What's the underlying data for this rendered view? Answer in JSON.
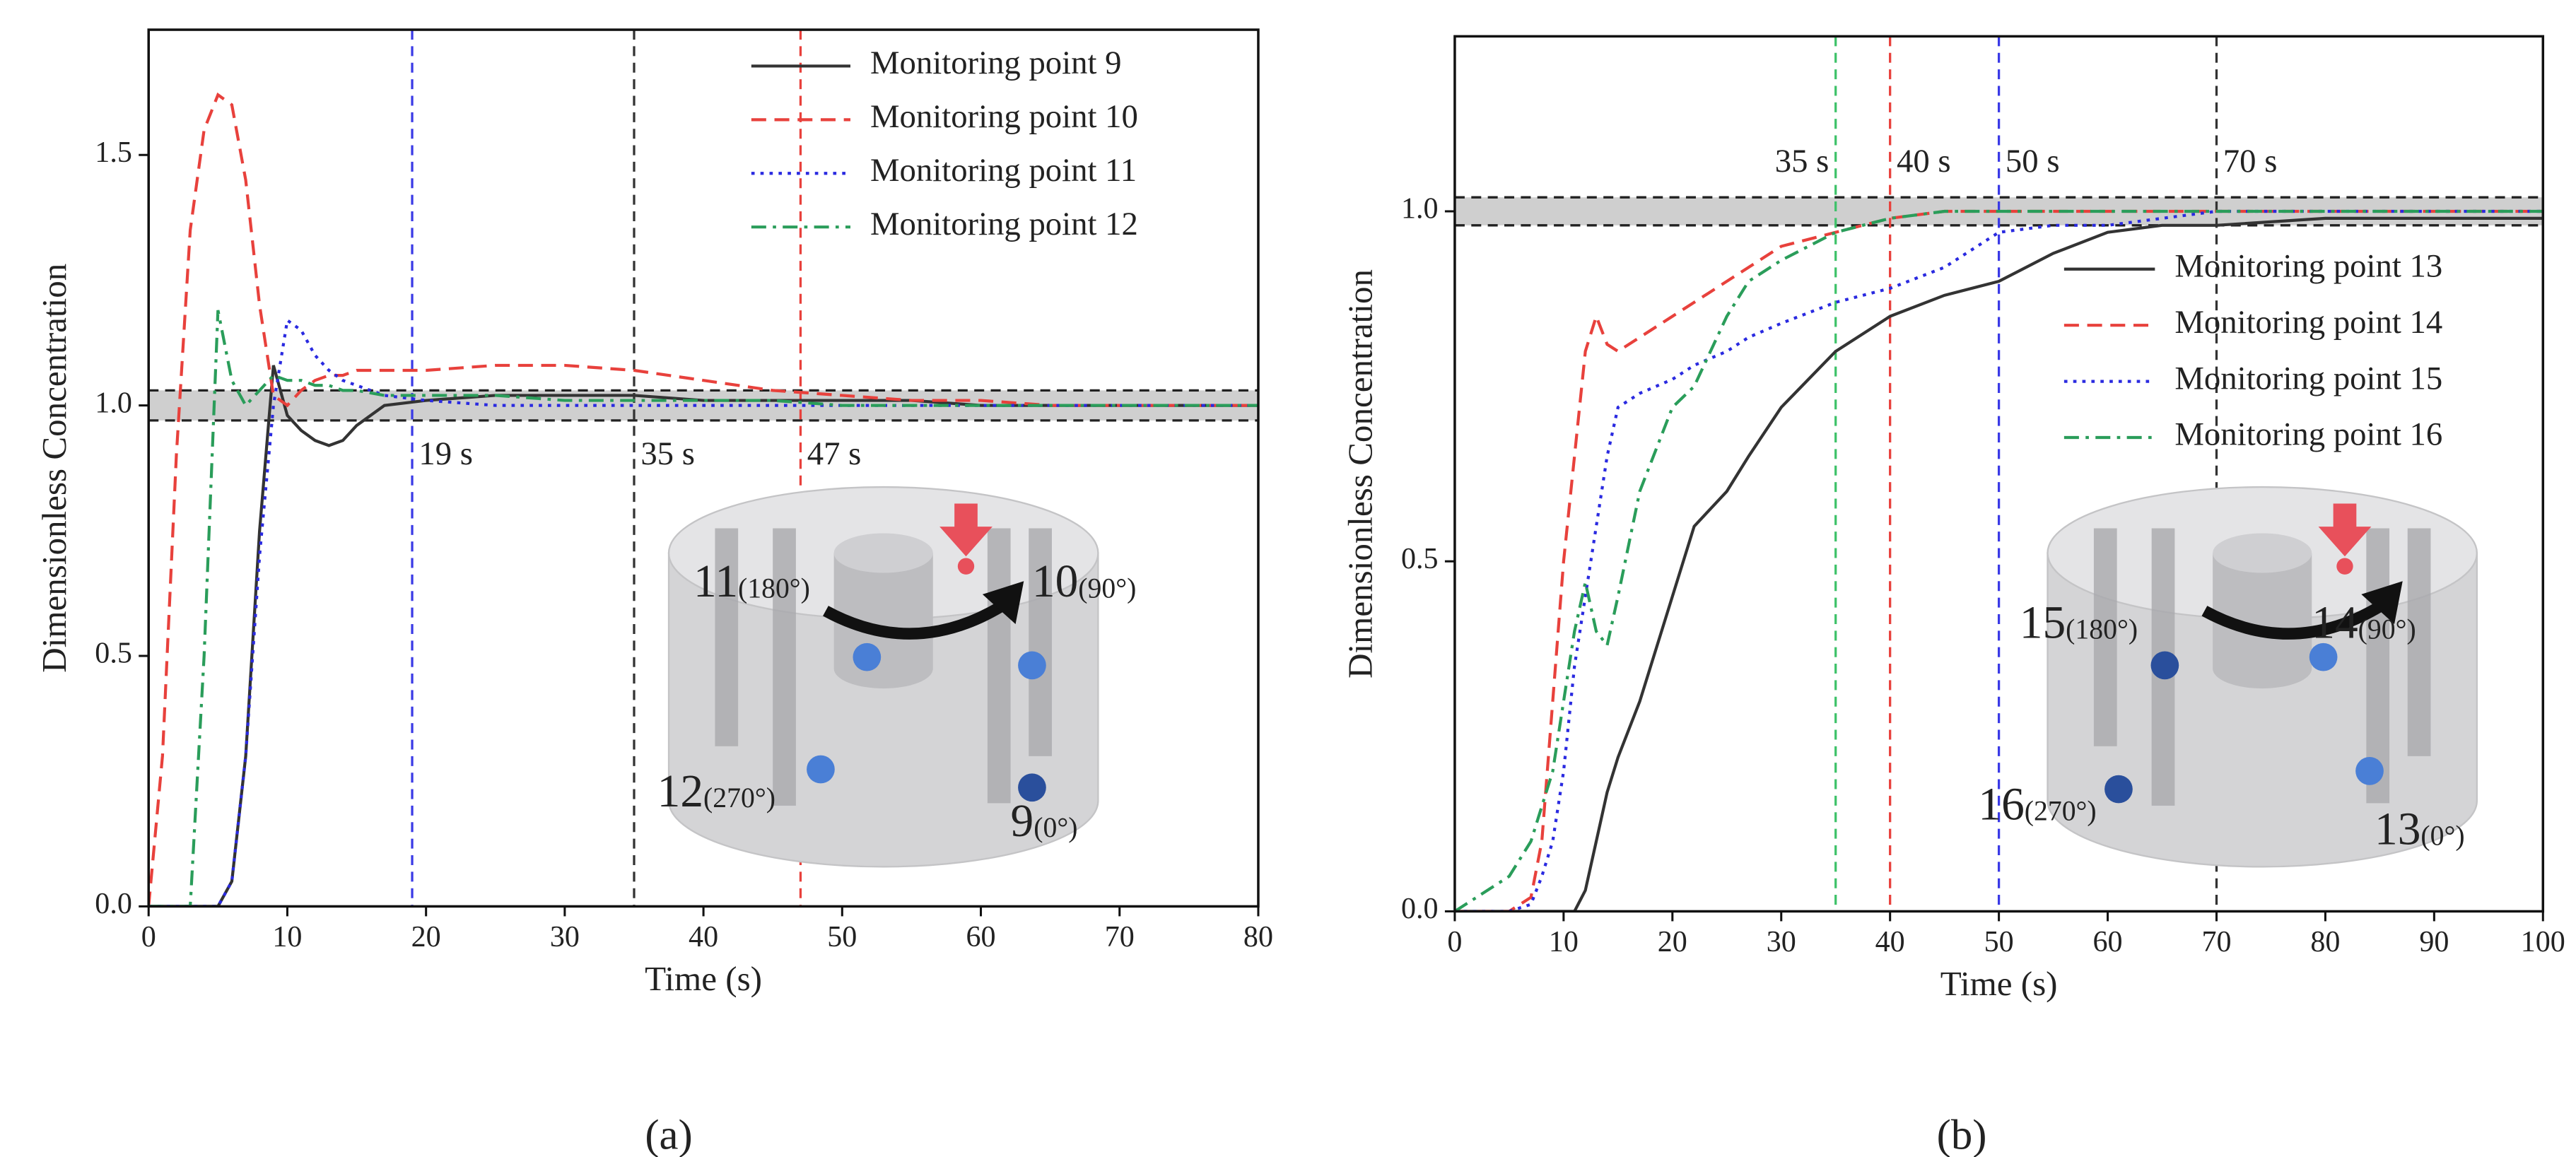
{
  "chart_data": [
    {
      "type": "line",
      "panel_label": "(a)",
      "xlabel": "Time (s)",
      "ylabel": "Dimensionless Concentration",
      "xlim": [
        0,
        80
      ],
      "ylim": [
        0,
        1.75
      ],
      "xticks": [
        0,
        10,
        20,
        30,
        40,
        50,
        60,
        70,
        80
      ],
      "yticks": [
        {
          "value": 0,
          "label": "0.0"
        },
        0.5,
        {
          "value": 1,
          "label": "1.0"
        },
        1.5
      ],
      "legend": "upper right",
      "band": [
        0.97,
        1.03
      ],
      "x": [
        0,
        1,
        2,
        3,
        4,
        5,
        6,
        7,
        8,
        9,
        10,
        11,
        12,
        13,
        14,
        15,
        17,
        20,
        25,
        30,
        35,
        40,
        45,
        50,
        55,
        60,
        65,
        70,
        75,
        80
      ],
      "series": [
        {
          "name": "Monitoring point 9",
          "color": "#333333",
          "style": "solid",
          "values": [
            0,
            0,
            0,
            0,
            0,
            0,
            0.05,
            0.3,
            0.75,
            1.08,
            0.98,
            0.95,
            0.93,
            0.92,
            0.93,
            0.96,
            1.0,
            1.01,
            1.02,
            1.02,
            1.02,
            1.01,
            1.01,
            1.01,
            1.01,
            1.0,
            1.0,
            1.0,
            1.0,
            1.0
          ]
        },
        {
          "name": "Monitoring point 10",
          "color": "#e8413c",
          "style": "dashed",
          "values": [
            0,
            0.3,
            0.9,
            1.35,
            1.55,
            1.62,
            1.6,
            1.45,
            1.2,
            1.02,
            1.0,
            1.03,
            1.05,
            1.06,
            1.06,
            1.07,
            1.07,
            1.07,
            1.08,
            1.08,
            1.07,
            1.05,
            1.03,
            1.02,
            1.01,
            1.01,
            1.0,
            1.0,
            1.0,
            1.0
          ]
        },
        {
          "name": "Monitoring point 11",
          "color": "#2a2ae0",
          "style": "dotted",
          "values": [
            0,
            0,
            0,
            0,
            0,
            0,
            0.05,
            0.3,
            0.7,
            1.0,
            1.17,
            1.15,
            1.1,
            1.07,
            1.05,
            1.04,
            1.02,
            1.01,
            1.0,
            1.0,
            1.0,
            1.0,
            1.0,
            1.0,
            1.0,
            1.0,
            1.0,
            1.0,
            1.0,
            1.0
          ]
        },
        {
          "name": "Monitoring point 12",
          "color": "#2a9d5a",
          "style": "dashdot",
          "values": [
            0,
            0,
            0,
            0,
            0.5,
            1.19,
            1.05,
            1.0,
            1.03,
            1.06,
            1.05,
            1.05,
            1.04,
            1.04,
            1.03,
            1.03,
            1.02,
            1.02,
            1.02,
            1.01,
            1.01,
            1.01,
            1.01,
            1.0,
            1.0,
            1.0,
            1.0,
            1.0,
            1.0,
            1.0
          ]
        }
      ],
      "vlines": [
        {
          "value": 19,
          "label": "19 s",
          "color": "#3a3ae6"
        },
        {
          "value": 35,
          "label": "35 s",
          "color": "#333333"
        },
        {
          "value": 47,
          "label": "47 s",
          "color": "#e8413c"
        }
      ],
      "inset_labels": [
        {
          "number": "11",
          "angle": "(180°)",
          "dot_color": "#4a7fd6"
        },
        {
          "number": "10",
          "angle": "(90°)",
          "dot_color": "#4a7fd6"
        },
        {
          "number": "12",
          "angle": "(270°)",
          "dot_color": "#4a7fd6"
        },
        {
          "number": "9",
          "angle": "(0°)",
          "dot_color": "#2a4f9c"
        }
      ]
    },
    {
      "type": "line",
      "panel_label": "(b)",
      "xlabel": "Time (s)",
      "ylabel": "Dimensionless Concentration",
      "xlim": [
        0,
        100
      ],
      "ylim": [
        0,
        1.25
      ],
      "xticks": [
        0,
        10,
        20,
        30,
        40,
        50,
        60,
        70,
        80,
        90,
        100
      ],
      "yticks": [
        {
          "value": 0,
          "label": "0.0"
        },
        0.5,
        {
          "value": 1,
          "label": "1.0"
        }
      ],
      "legend": "center right",
      "band": [
        0.98,
        1.02
      ],
      "x": [
        0,
        5,
        7,
        8,
        9,
        10,
        11,
        12,
        13,
        14,
        15,
        17,
        20,
        22,
        25,
        27,
        30,
        35,
        40,
        45,
        50,
        55,
        60,
        65,
        70,
        80,
        90,
        100
      ],
      "series": [
        {
          "name": "Monitoring point 13",
          "color": "#333333",
          "style": "solid",
          "values": [
            0,
            0,
            0,
            0,
            0,
            0,
            0,
            0.03,
            0.1,
            0.17,
            0.22,
            0.3,
            0.45,
            0.55,
            0.6,
            0.65,
            0.72,
            0.8,
            0.85,
            0.88,
            0.9,
            0.94,
            0.97,
            0.98,
            0.98,
            0.99,
            0.99,
            0.99
          ]
        },
        {
          "name": "Monitoring point 14",
          "color": "#e8413c",
          "style": "dashed",
          "values": [
            0,
            0,
            0.02,
            0.1,
            0.3,
            0.5,
            0.65,
            0.8,
            0.85,
            0.81,
            0.8,
            0.82,
            0.85,
            0.87,
            0.9,
            0.92,
            0.95,
            0.97,
            0.99,
            1.0,
            1.0,
            1.0,
            1.0,
            1.0,
            1.0,
            1.0,
            1.0,
            1.0
          ]
        },
        {
          "name": "Monitoring point 15",
          "color": "#2a2ae0",
          "style": "dotted",
          "values": [
            0,
            0,
            0.01,
            0.05,
            0.1,
            0.2,
            0.35,
            0.45,
            0.55,
            0.65,
            0.72,
            0.74,
            0.76,
            0.78,
            0.8,
            0.82,
            0.84,
            0.87,
            0.89,
            0.92,
            0.97,
            0.98,
            0.98,
            0.99,
            1.0,
            1.0,
            1.0,
            1.0
          ]
        },
        {
          "name": "Monitoring point 16",
          "color": "#2a9d5a",
          "style": "dashdot",
          "values": [
            0,
            0.05,
            0.1,
            0.15,
            0.2,
            0.3,
            0.4,
            0.47,
            0.4,
            0.38,
            0.45,
            0.6,
            0.72,
            0.75,
            0.85,
            0.9,
            0.93,
            0.97,
            0.99,
            1.0,
            1.0,
            1.0,
            1.0,
            1.0,
            1.0,
            1.0,
            1.0,
            1.0
          ]
        }
      ],
      "vlines": [
        {
          "value": 35,
          "label": "35 s",
          "color": "#3fc26a"
        },
        {
          "value": 40,
          "label": "40 s",
          "color": "#e8413c"
        },
        {
          "value": 50,
          "label": "50 s",
          "color": "#3a3ae6"
        },
        {
          "value": 70,
          "label": "70 s",
          "color": "#333333"
        }
      ],
      "inset_labels": [
        {
          "number": "15",
          "angle": "(180°)",
          "dot_color": "#2a4f9c"
        },
        {
          "number": "14",
          "angle": "(90°)",
          "dot_color": "#4a7fd6"
        },
        {
          "number": "16",
          "angle": "(270°)",
          "dot_color": "#2a4f9c"
        },
        {
          "number": "13",
          "angle": "(0°)",
          "dot_color": "#4a7fd6"
        }
      ]
    }
  ]
}
